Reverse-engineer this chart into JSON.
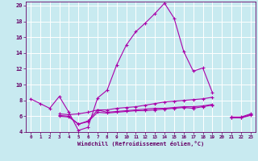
{
  "background_color": "#c8eaf0",
  "grid_color": "#ffffff",
  "line_color": "#aa00aa",
  "xlabel": "Windchill (Refroidissement éolien,°C)",
  "xlim": [
    -0.5,
    23.5
  ],
  "ylim": [
    4,
    20.5
  ],
  "yticks": [
    4,
    6,
    8,
    10,
    12,
    14,
    16,
    18,
    20
  ],
  "xticks": [
    0,
    1,
    2,
    3,
    4,
    5,
    6,
    7,
    8,
    9,
    10,
    11,
    12,
    13,
    14,
    15,
    16,
    17,
    18,
    19,
    20,
    21,
    22,
    23
  ],
  "series": [
    {
      "x": [
        0,
        1,
        2,
        3,
        4,
        5,
        6,
        7,
        8,
        9,
        10,
        11,
        12,
        13,
        14,
        15,
        16,
        17,
        18,
        19
      ],
      "y": [
        8.2,
        7.6,
        7.0,
        8.5,
        6.5,
        4.2,
        4.6,
        8.3,
        9.3,
        12.5,
        15.0,
        16.7,
        17.8,
        19.0,
        20.3,
        18.4,
        14.2,
        11.7,
        12.1,
        9.0
      ]
    },
    {
      "x": [
        3,
        4,
        5,
        6,
        7,
        8,
        9,
        10,
        11,
        12,
        13,
        14,
        15,
        16,
        17,
        18,
        19
      ],
      "y": [
        6.3,
        6.2,
        6.3,
        6.5,
        6.8,
        6.8,
        7.0,
        7.1,
        7.2,
        7.4,
        7.6,
        7.8,
        7.9,
        8.0,
        8.1,
        8.2,
        8.4
      ]
    },
    {
      "x": [
        21,
        22,
        23
      ],
      "y": [
        5.9,
        5.9,
        6.3
      ]
    },
    {
      "x": [
        3,
        4,
        5,
        6,
        7,
        8,
        9,
        10,
        11,
        12,
        13,
        14,
        15,
        16,
        17,
        18,
        19
      ],
      "y": [
        6.0,
        5.9,
        5.0,
        5.4,
        6.8,
        6.5,
        6.6,
        6.7,
        6.8,
        6.9,
        7.0,
        7.0,
        7.1,
        7.2,
        7.2,
        7.3,
        7.5
      ]
    },
    {
      "x": [
        21,
        22,
        23
      ],
      "y": [
        5.8,
        5.8,
        6.2
      ]
    },
    {
      "x": [
        3,
        4,
        5,
        6,
        7,
        8,
        9,
        10,
        11,
        12,
        13,
        14,
        15,
        16,
        17,
        18,
        19
      ],
      "y": [
        6.1,
        6.0,
        5.0,
        5.3,
        6.5,
        6.4,
        6.5,
        6.6,
        6.7,
        6.7,
        6.8,
        6.9,
        7.0,
        7.1,
        7.0,
        7.2,
        7.4
      ]
    },
    {
      "x": [
        21,
        22,
        23
      ],
      "y": [
        5.8,
        5.8,
        6.1
      ]
    }
  ]
}
